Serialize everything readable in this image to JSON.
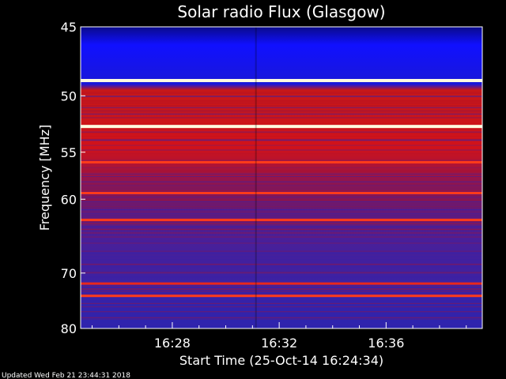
{
  "chart_data": {
    "type": "heatmap",
    "title": "Solar radio Flux (Glasgow)",
    "xlabel": "Start Time (25-Oct-14 16:24:34)",
    "ylabel": "Frequency [MHz]",
    "x_range_minutes": [
      16.4,
      16.655
    ],
    "x_ticks": [
      {
        "label": "16:28",
        "minute": 28
      },
      {
        "label": "16:32",
        "minute": 32
      },
      {
        "label": "16:36",
        "minute": 36
      }
    ],
    "y_ticks": [
      {
        "label": "45",
        "mhz": 45
      },
      {
        "label": "50",
        "mhz": 50
      },
      {
        "label": "55",
        "mhz": 55
      },
      {
        "label": "60",
        "mhz": 60
      },
      {
        "label": "70",
        "mhz": 70
      },
      {
        "label": "80",
        "mhz": 80
      }
    ],
    "ylim_mhz": [
      45,
      80
    ],
    "x_start_minutes": 24.57,
    "x_end_minutes": 39.6,
    "bands": [
      {
        "mhz": 48.8,
        "intensity": "white"
      },
      {
        "mhz": 52.6,
        "intensity": "white"
      },
      {
        "mhz": 56.0,
        "intensity": "high"
      },
      {
        "mhz": 59.3,
        "intensity": "high"
      },
      {
        "mhz": 62.5,
        "intensity": "high"
      },
      {
        "mhz": 71.7,
        "intensity": "medium"
      },
      {
        "mhz": 73.8,
        "intensity": "high"
      }
    ],
    "colors": {
      "background": "#000000",
      "low": "#2a1f9c",
      "mid": "#b0122a",
      "high": "#ff3b1a",
      "white": "#fffbe0",
      "blue_top": "#1010ff"
    },
    "footer": "Updated Wed Feb 21 23:44:31 2018"
  }
}
